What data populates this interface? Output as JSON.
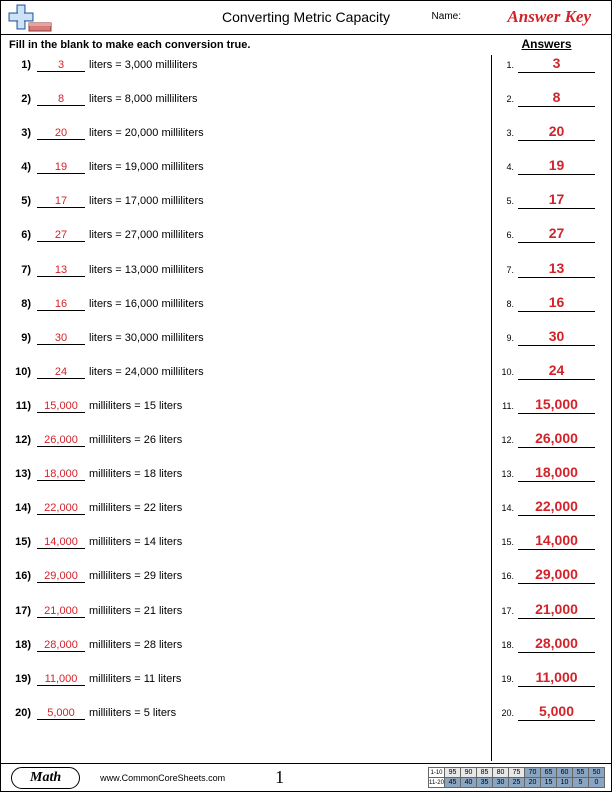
{
  "header": {
    "title": "Converting Metric Capacity",
    "name_label": "Name:",
    "answer_key": "Answer Key"
  },
  "instruction": "Fill in the blank to make each conversion true.",
  "answers_heading": "Answers",
  "colors": {
    "answer_red": "#d2232a",
    "grid_blue": "#8aa5c2",
    "grid_grey": "#e8e8e8"
  },
  "questions": [
    {
      "n": "1)",
      "blank": "3",
      "text": "liters = 3,000 milliliters",
      "ans": "3"
    },
    {
      "n": "2)",
      "blank": "8",
      "text": "liters = 8,000 milliliters",
      "ans": "8"
    },
    {
      "n": "3)",
      "blank": "20",
      "text": "liters = 20,000 milliliters",
      "ans": "20"
    },
    {
      "n": "4)",
      "blank": "19",
      "text": "liters = 19,000 milliliters",
      "ans": "19"
    },
    {
      "n": "5)",
      "blank": "17",
      "text": "liters = 17,000 milliliters",
      "ans": "17"
    },
    {
      "n": "6)",
      "blank": "27",
      "text": "liters = 27,000 milliliters",
      "ans": "27"
    },
    {
      "n": "7)",
      "blank": "13",
      "text": "liters = 13,000 milliliters",
      "ans": "13"
    },
    {
      "n": "8)",
      "blank": "16",
      "text": "liters = 16,000 milliliters",
      "ans": "16"
    },
    {
      "n": "9)",
      "blank": "30",
      "text": "liters = 30,000 milliliters",
      "ans": "30"
    },
    {
      "n": "10)",
      "blank": "24",
      "text": "liters = 24,000 milliliters",
      "ans": "24"
    },
    {
      "n": "11)",
      "blank": "15,000",
      "text": "milliliters = 15 liters",
      "ans": "15,000"
    },
    {
      "n": "12)",
      "blank": "26,000",
      "text": "milliliters = 26 liters",
      "ans": "26,000"
    },
    {
      "n": "13)",
      "blank": "18,000",
      "text": "milliliters = 18 liters",
      "ans": "18,000"
    },
    {
      "n": "14)",
      "blank": "22,000",
      "text": "milliliters = 22 liters",
      "ans": "22,000"
    },
    {
      "n": "15)",
      "blank": "14,000",
      "text": "milliliters = 14 liters",
      "ans": "14,000"
    },
    {
      "n": "16)",
      "blank": "29,000",
      "text": "milliliters = 29 liters",
      "ans": "29,000"
    },
    {
      "n": "17)",
      "blank": "21,000",
      "text": "milliliters = 21 liters",
      "ans": "21,000"
    },
    {
      "n": "18)",
      "blank": "28,000",
      "text": "milliliters = 28 liters",
      "ans": "28,000"
    },
    {
      "n": "19)",
      "blank": "11,000",
      "text": "milliliters = 11 liters",
      "ans": "11,000"
    },
    {
      "n": "20)",
      "blank": "5,000",
      "text": "milliliters = 5 liters",
      "ans": "5,000"
    }
  ],
  "footer": {
    "badge": "Math",
    "url": "www.CommonCoreSheets.com",
    "page_num": "1"
  },
  "score_grid": {
    "row1_label": "1-10",
    "row2_label": "11-20",
    "row1": [
      "95",
      "90",
      "85",
      "80",
      "75",
      "70",
      "65",
      "60",
      "55",
      "50"
    ],
    "row2": [
      "45",
      "40",
      "35",
      "30",
      "25",
      "20",
      "15",
      "10",
      "5",
      "0"
    ],
    "row1_shaded_from": 5
  }
}
